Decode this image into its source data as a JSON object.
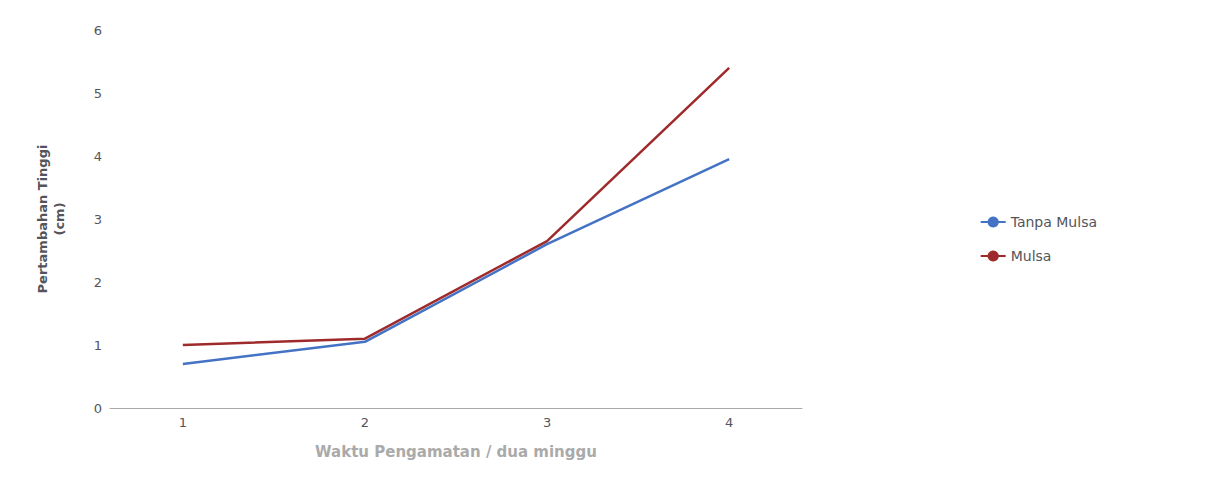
{
  "chart_data": {
    "type": "line",
    "xlabel": "Waktu Pengamatan / dua minggu",
    "ylabel": "Pertambahan Tinggi\n(cm)",
    "x": [
      1,
      2,
      3,
      4
    ],
    "series": [
      {
        "name": "Tanpa Mulsa",
        "color": "#4472c4",
        "values": [
          0.7,
          1.05,
          2.6,
          3.95
        ]
      },
      {
        "name": "Mulsa",
        "color": "#9e2a2b",
        "values": [
          1.0,
          1.1,
          2.65,
          5.4
        ]
      }
    ],
    "xlim": [
      0.6,
      4.4
    ],
    "xticks": [
      1,
      2,
      3,
      4
    ],
    "ylim": [
      0,
      6
    ],
    "yticks": [
      0,
      1,
      2,
      3,
      4,
      5,
      6
    ],
    "grid": false,
    "legend": "right"
  }
}
